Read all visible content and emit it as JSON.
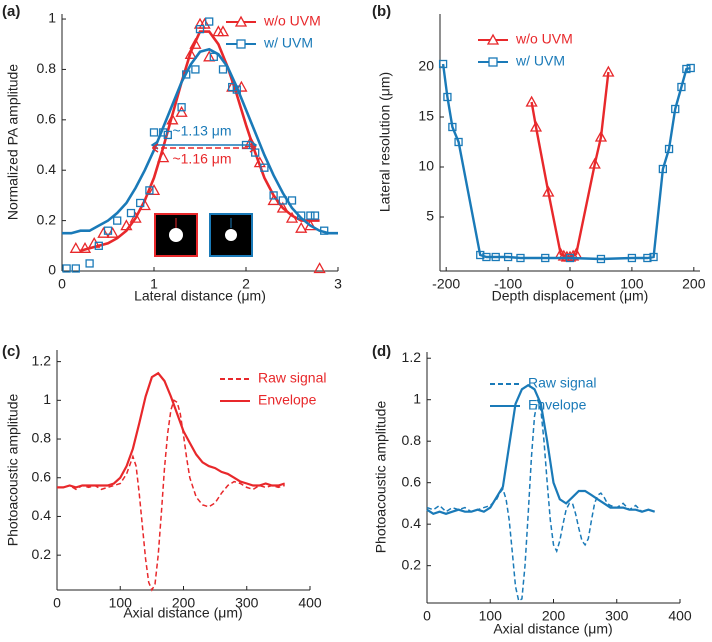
{
  "chart_data": [
    {
      "type": "scatter",
      "title": "(a)",
      "xlabel": "Lateral distance (μm)",
      "ylabel": "Normalized PA amplitude",
      "xlim": [
        0,
        3
      ],
      "ylim": [
        0,
        1.02
      ],
      "xticks": [
        0,
        1,
        2,
        3
      ],
      "yticks": [
        0,
        0.2,
        0.4,
        0.6,
        0.8,
        1
      ],
      "legend": "upper right",
      "annotations": [
        {
          "text": "~1.13 μm",
          "color": "#1a7ab8"
        },
        {
          "text": "~1.16 μm",
          "color": "#e8282b"
        }
      ],
      "series": [
        {
          "name": "w/o UVM",
          "color": "#e8282b",
          "marker": "triangle",
          "x": [
            0.15,
            0.25,
            0.35,
            0.45,
            0.55,
            0.7,
            0.8,
            0.9,
            1.0,
            1.1,
            1.2,
            1.3,
            1.4,
            1.45,
            1.5,
            1.55,
            1.6,
            1.7,
            1.75,
            1.85,
            1.95,
            2.05,
            2.15,
            2.3,
            2.4,
            2.5,
            2.6,
            2.7,
            2.8
          ],
          "values": [
            0.09,
            0.09,
            0.11,
            0.15,
            0.15,
            0.18,
            0.21,
            0.26,
            0.32,
            0.45,
            0.6,
            0.63,
            0.86,
            0.9,
            0.98,
            0.98,
            0.85,
            0.95,
            0.95,
            0.73,
            0.73,
            0.51,
            0.43,
            0.28,
            0.25,
            0.21,
            0.17,
            0.18,
            0.01
          ],
          "fit_x": [
            0.2,
            0.3,
            0.4,
            0.5,
            0.6,
            0.7,
            0.8,
            0.9,
            1.0,
            1.1,
            1.2,
            1.3,
            1.4,
            1.5,
            1.6,
            1.7,
            1.8,
            1.9,
            2.0,
            2.1,
            2.2,
            2.3,
            2.4,
            2.5,
            2.6,
            2.7,
            2.8
          ],
          "fit_values": [
            0.08,
            0.09,
            0.1,
            0.11,
            0.13,
            0.16,
            0.21,
            0.28,
            0.37,
            0.49,
            0.62,
            0.75,
            0.87,
            0.95,
            0.95,
            0.9,
            0.81,
            0.7,
            0.58,
            0.47,
            0.37,
            0.3,
            0.25,
            0.22,
            0.2,
            0.2,
            0.2
          ]
        },
        {
          "name": "w/ UVM",
          "color": "#1a7ab8",
          "marker": "square",
          "x": [
            0.05,
            0.15,
            0.3,
            0.4,
            0.5,
            0.6,
            0.75,
            0.85,
            0.95,
            1.0,
            1.1,
            1.15,
            1.3,
            1.35,
            1.45,
            1.5,
            1.6,
            1.65,
            1.75,
            1.85,
            1.9,
            2.0,
            2.1,
            2.2,
            2.3,
            2.4,
            2.5,
            2.6,
            2.7,
            2.75,
            2.85
          ],
          "values": [
            0.01,
            0.01,
            0.03,
            0.1,
            0.16,
            0.2,
            0.23,
            0.27,
            0.32,
            0.55,
            0.55,
            0.54,
            0.65,
            0.78,
            0.8,
            0.96,
            0.99,
            0.85,
            0.8,
            0.73,
            0.72,
            0.5,
            0.47,
            0.41,
            0.3,
            0.28,
            0.28,
            0.22,
            0.22,
            0.22,
            0.16
          ],
          "fit_x": [
            0,
            0.1,
            0.2,
            0.3,
            0.4,
            0.5,
            0.6,
            0.7,
            0.8,
            0.9,
            1.0,
            1.1,
            1.2,
            1.3,
            1.4,
            1.5,
            1.6,
            1.7,
            1.8,
            1.9,
            2.0,
            2.1,
            2.2,
            2.3,
            2.4,
            2.5,
            2.6,
            2.7,
            2.8,
            2.9,
            3.0
          ],
          "fit_values": [
            0.15,
            0.15,
            0.16,
            0.16,
            0.18,
            0.2,
            0.23,
            0.27,
            0.33,
            0.4,
            0.48,
            0.57,
            0.66,
            0.75,
            0.82,
            0.87,
            0.88,
            0.86,
            0.81,
            0.73,
            0.64,
            0.55,
            0.46,
            0.38,
            0.31,
            0.25,
            0.21,
            0.18,
            0.16,
            0.15,
            0.15
          ]
        }
      ]
    },
    {
      "type": "line",
      "title": "(b)",
      "xlabel": "Depth displacement (μm)",
      "ylabel": "Lateral resolution (μm)",
      "xlim": [
        -210,
        210
      ],
      "ylim": [
        -0.4,
        25.3
      ],
      "xticks": [
        -200,
        -100,
        0,
        100,
        200
      ],
      "yticks": [
        5,
        10,
        15,
        20
      ],
      "legend": "upper center",
      "series": [
        {
          "name": "w/o UVM",
          "color": "#e8282b",
          "marker": "triangle",
          "x": [
            -62,
            -55,
            -35,
            -15,
            -10,
            -5,
            0,
            5,
            10,
            40,
            50,
            62
          ],
          "values": [
            16.5,
            14,
            7.5,
            1.3,
            1.1,
            1.0,
            1.0,
            1.1,
            1.3,
            10.3,
            13,
            19.5
          ]
        },
        {
          "name": "w/ UVM",
          "color": "#1a7ab8",
          "marker": "square",
          "x": [
            -205,
            -198,
            -190,
            -180,
            -145,
            -135,
            -120,
            -100,
            -80,
            -40,
            0,
            50,
            100,
            125,
            135,
            150,
            160,
            170,
            180,
            188,
            195
          ],
          "values": [
            20.3,
            17,
            14,
            12.5,
            1.2,
            1.0,
            1.0,
            1.0,
            0.9,
            0.9,
            0.9,
            0.8,
            0.9,
            0.9,
            1.0,
            9.8,
            11.8,
            15.8,
            18,
            19.8,
            19.9
          ]
        }
      ]
    },
    {
      "type": "line",
      "title": "(c)",
      "xlabel": "Axial distance (μm)",
      "ylabel": "Photoacoustic amplitude",
      "xlim": [
        0,
        400
      ],
      "ylim": [
        0.02,
        1.26
      ],
      "xticks": [
        0,
        100,
        200,
        300,
        400
      ],
      "yticks": [
        0.2,
        0.4,
        0.6,
        0.8,
        1,
        1.2
      ],
      "legend": "upper right",
      "series": [
        {
          "name": "Raw signal",
          "color": "#e8282b",
          "line_style": "dashed",
          "x": [
            0,
            10,
            20,
            30,
            40,
            50,
            60,
            70,
            80,
            90,
            100,
            110,
            120,
            125,
            130,
            135,
            140,
            145,
            150,
            155,
            160,
            165,
            170,
            175,
            180,
            185,
            190,
            195,
            200,
            205,
            210,
            220,
            230,
            240,
            250,
            260,
            270,
            280,
            290,
            300,
            310,
            320,
            330,
            340,
            350,
            360
          ],
          "values": [
            0.55,
            0.55,
            0.56,
            0.54,
            0.56,
            0.55,
            0.56,
            0.54,
            0.55,
            0.56,
            0.57,
            0.62,
            0.71,
            0.66,
            0.52,
            0.35,
            0.18,
            0.06,
            0.02,
            0.05,
            0.2,
            0.42,
            0.65,
            0.83,
            0.95,
            1.0,
            0.99,
            0.93,
            0.82,
            0.7,
            0.6,
            0.5,
            0.46,
            0.45,
            0.47,
            0.52,
            0.56,
            0.58,
            0.57,
            0.55,
            0.54,
            0.56,
            0.55,
            0.56,
            0.55,
            0.56
          ]
        },
        {
          "name": "Envelope",
          "color": "#e8282b",
          "line_style": "solid",
          "x": [
            0,
            10,
            20,
            30,
            40,
            50,
            60,
            70,
            80,
            90,
            100,
            110,
            120,
            130,
            140,
            150,
            160,
            170,
            180,
            190,
            200,
            210,
            220,
            230,
            240,
            250,
            260,
            270,
            280,
            290,
            300,
            310,
            320,
            330,
            340,
            350,
            360
          ],
          "values": [
            0.55,
            0.55,
            0.56,
            0.55,
            0.56,
            0.56,
            0.56,
            0.56,
            0.56,
            0.57,
            0.6,
            0.66,
            0.75,
            0.88,
            1.02,
            1.12,
            1.14,
            1.1,
            1.02,
            0.93,
            0.84,
            0.78,
            0.72,
            0.68,
            0.66,
            0.65,
            0.63,
            0.62,
            0.6,
            0.58,
            0.57,
            0.56,
            0.56,
            0.57,
            0.56,
            0.56,
            0.57
          ]
        }
      ]
    },
    {
      "type": "line",
      "title": "(d)",
      "xlabel": "Axial distance (μm)",
      "ylabel": "Photoacoustic amplitude",
      "xlim": [
        0,
        400
      ],
      "ylim": [
        0.02,
        1.23
      ],
      "xticks": [
        0,
        100,
        200,
        300,
        400
      ],
      "yticks": [
        0.2,
        0.4,
        0.6,
        0.8,
        1,
        1.2
      ],
      "legend": "upper right",
      "series": [
        {
          "name": "Raw signal",
          "color": "#1a7ab8",
          "line_style": "dashed",
          "x": [
            0,
            10,
            20,
            30,
            40,
            50,
            60,
            70,
            80,
            90,
            100,
            110,
            115,
            120,
            125,
            130,
            135,
            140,
            145,
            150,
            155,
            160,
            165,
            170,
            175,
            180,
            185,
            190,
            195,
            200,
            205,
            210,
            215,
            220,
            225,
            230,
            235,
            240,
            245,
            250,
            255,
            260,
            265,
            270,
            275,
            280,
            285,
            290,
            300,
            310,
            320,
            330,
            340,
            350,
            360
          ],
          "values": [
            0.48,
            0.47,
            0.49,
            0.46,
            0.48,
            0.47,
            0.48,
            0.46,
            0.47,
            0.48,
            0.49,
            0.52,
            0.55,
            0.57,
            0.52,
            0.42,
            0.26,
            0.1,
            0.03,
            0.04,
            0.2,
            0.45,
            0.72,
            0.92,
            1.0,
            0.95,
            0.8,
            0.6,
            0.42,
            0.3,
            0.27,
            0.32,
            0.4,
            0.47,
            0.5,
            0.5,
            0.45,
            0.38,
            0.32,
            0.3,
            0.33,
            0.42,
            0.5,
            0.54,
            0.55,
            0.53,
            0.5,
            0.49,
            0.48,
            0.5,
            0.47,
            0.49,
            0.46,
            0.47,
            0.46
          ]
        },
        {
          "name": "Envelope",
          "color": "#1a7ab8",
          "line_style": "solid",
          "x": [
            0,
            10,
            20,
            30,
            40,
            50,
            60,
            70,
            80,
            90,
            100,
            110,
            120,
            130,
            140,
            150,
            160,
            170,
            180,
            190,
            200,
            210,
            220,
            230,
            240,
            250,
            260,
            270,
            280,
            290,
            300,
            310,
            320,
            330,
            340,
            350,
            360
          ],
          "values": [
            0.47,
            0.45,
            0.46,
            0.45,
            0.46,
            0.47,
            0.46,
            0.46,
            0.47,
            0.46,
            0.48,
            0.53,
            0.58,
            0.78,
            0.98,
            1.05,
            1.07,
            1.05,
            0.98,
            0.8,
            0.6,
            0.52,
            0.5,
            0.53,
            0.56,
            0.56,
            0.54,
            0.52,
            0.5,
            0.48,
            0.48,
            0.48,
            0.47,
            0.47,
            0.46,
            0.47,
            0.46
          ]
        }
      ]
    }
  ]
}
